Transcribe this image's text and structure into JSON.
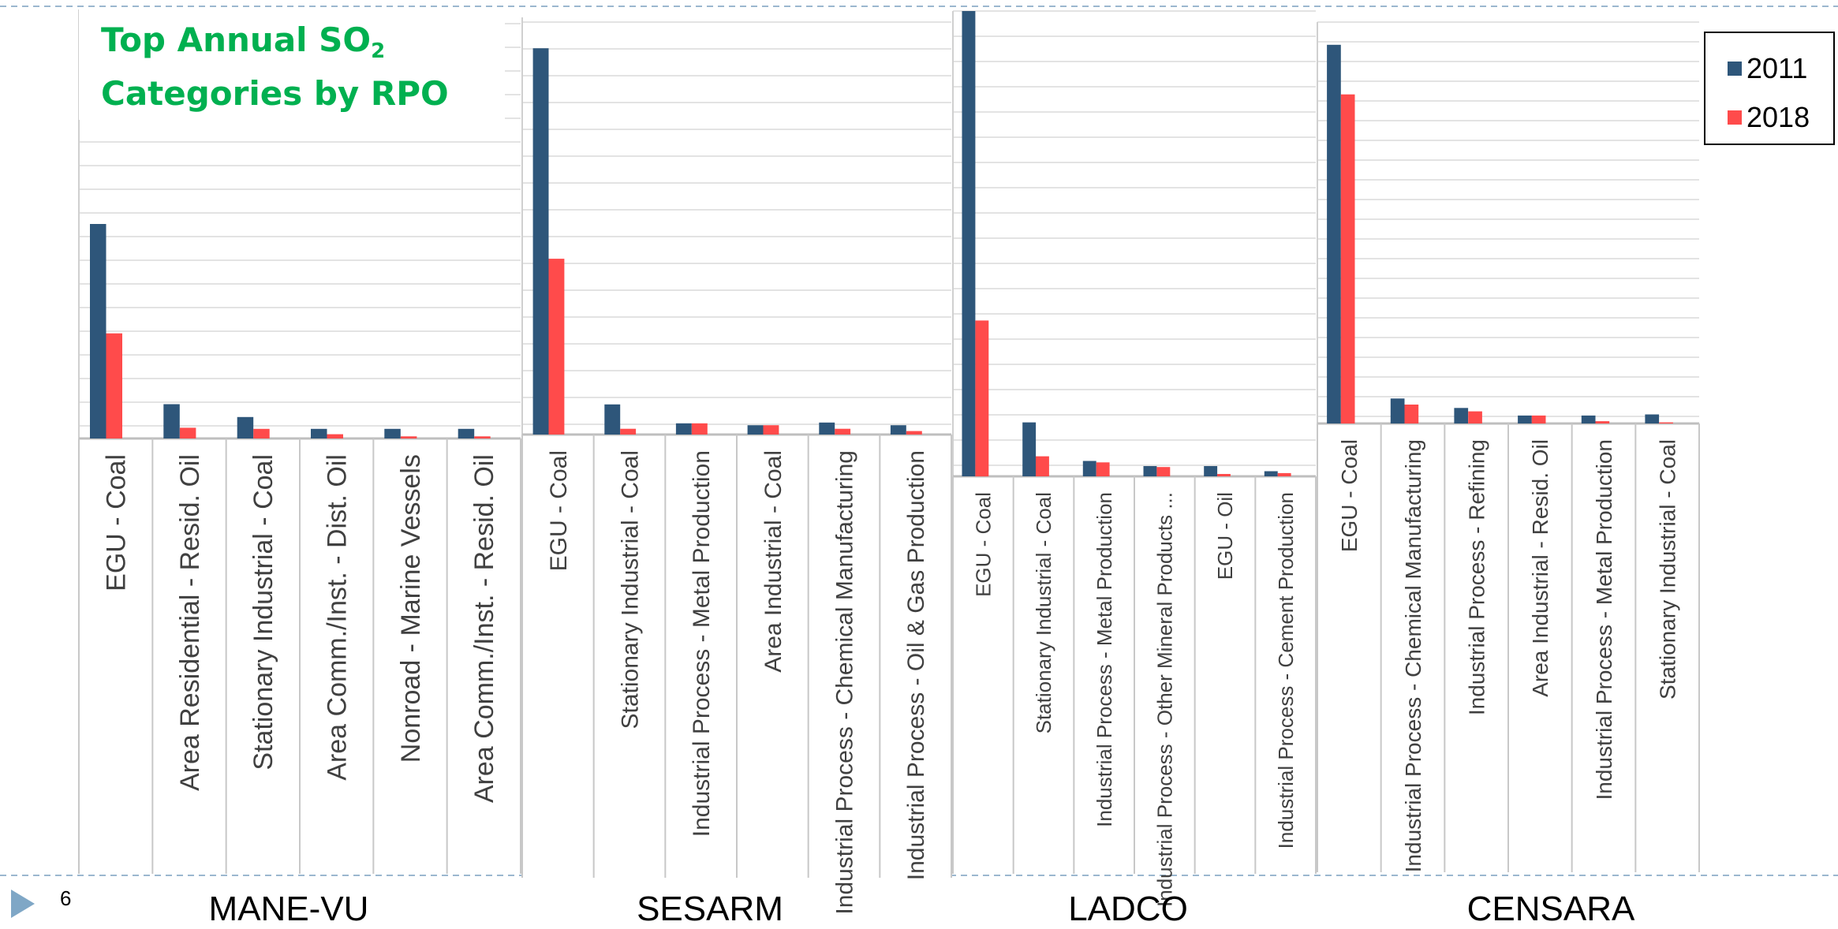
{
  "title": {
    "line1": "Top Annual SO",
    "subscript": "2",
    "line2": "Categories by RPO"
  },
  "legend": [
    {
      "label": "2011",
      "color": "#2e567a"
    },
    {
      "label": "2018",
      "color": "#ff4b4b"
    }
  ],
  "page_number": "6",
  "chart_data": [
    {
      "type": "bar",
      "rpo": "MANE-VU",
      "categories": [
        "EGU - Coal",
        "Area Residential - Resid. Oil",
        "Stationary Industrial - Coal",
        "Area Comm./Inst. - Dist. Oil",
        "Nonroad - Marine Vessels",
        "Area Comm./Inst. - Resid. Oil"
      ],
      "series": [
        {
          "name": "2011",
          "values": [
            100,
            16,
            10,
            4.5,
            4.5,
            4.5
          ]
        },
        {
          "name": "2018",
          "values": [
            49,
            5,
            4.5,
            2,
            1,
            1
          ]
        }
      ],
      "ylim": [
        0,
        200
      ]
    },
    {
      "type": "bar",
      "rpo": "SESARM",
      "categories": [
        "EGU - Coal",
        "Stationary Industrial - Coal",
        "Industrial Process - Metal Production",
        "Area Industrial - Coal",
        "Industrial Process - Chemical Manufacturing",
        "Industrial Process - Oil & Gas Production"
      ],
      "series": [
        {
          "name": "2011",
          "values": [
            100,
            7.8,
            2.9,
            2.4,
            3.1,
            2.4
          ]
        },
        {
          "name": "2018",
          "values": [
            45.5,
            1.5,
            2.9,
            2.4,
            1.5,
            0.9
          ]
        }
      ],
      "ylim": [
        0,
        108
      ]
    },
    {
      "type": "bar",
      "rpo": "LADCO",
      "categories": [
        "EGU - Coal",
        "Stationary Industrial - Coal",
        "Industrial Process - Metal Production",
        "Industrial Process - Other Mineral Products ...",
        "EGU - Oil",
        "Industrial Process - Cement Production"
      ],
      "series": [
        {
          "name": "2011",
          "values": [
            100,
            11.6,
            3.3,
            2.2,
            2.2,
            1.1
          ]
        },
        {
          "name": "2018",
          "values": [
            33.5,
            4.3,
            3.0,
            2.0,
            0.5,
            0.7
          ]
        }
      ],
      "ylim": [
        0,
        100
      ]
    },
    {
      "type": "bar",
      "rpo": "CENSARA",
      "categories": [
        "EGU - Coal",
        "Industrial Process - Chemical Manufacturing",
        "Industrial Process - Refining",
        "Area Industrial - Resid. Oil",
        "Industrial Process - Metal Production",
        "Stationary Industrial - Coal"
      ],
      "series": [
        {
          "name": "2011",
          "values": [
            100,
            6.6,
            4.1,
            2.1,
            2.1,
            2.4
          ]
        },
        {
          "name": "2018",
          "values": [
            86.9,
            5.0,
            3.2,
            2.1,
            0.6,
            0.3
          ]
        }
      ],
      "ylim": [
        0,
        106
      ]
    }
  ]
}
